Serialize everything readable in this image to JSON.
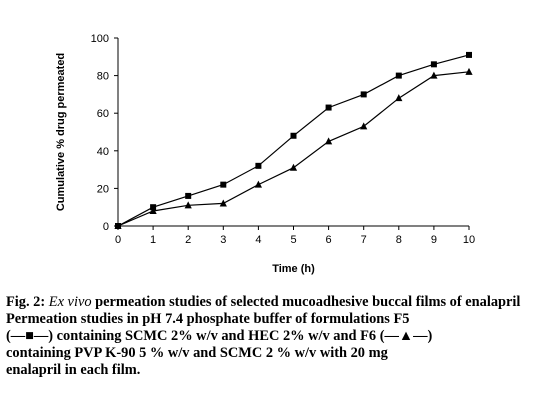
{
  "chart_data": {
    "type": "line",
    "xlabel": "Time (h)",
    "ylabel": "Cumulative % drug permeated",
    "xlim": [
      0,
      10
    ],
    "ylim": [
      0,
      100
    ],
    "x_ticks": [
      0,
      1,
      2,
      3,
      4,
      5,
      6,
      7,
      8,
      9,
      10
    ],
    "y_ticks": [
      0,
      20,
      40,
      60,
      80,
      100
    ],
    "grid": false,
    "legend": "none",
    "x": [
      0,
      1,
      2,
      3,
      4,
      5,
      6,
      7,
      8,
      9,
      10
    ],
    "series": [
      {
        "marker": "square",
        "color": "#000000",
        "values": [
          0,
          10,
          16,
          22,
          32,
          48,
          63,
          70,
          80,
          86,
          91
        ]
      },
      {
        "marker": "triangle",
        "color": "#000000",
        "values": [
          0,
          8,
          11,
          12,
          22,
          31,
          45,
          53,
          68,
          80,
          82
        ]
      }
    ]
  },
  "caption": {
    "fig_label": "Fig. 2:",
    "fig_italic": "Ex vivo",
    "fig_title": "permeation studies of selected mucoadhesive buccal films of enalapril",
    "line1": "Permeation studies in pH 7.4 phosphate buffer of formulations F5",
    "line2a": "(—■—) containing SCMC 2% w/v and HEC 2% w/v and F6 (—▲—)",
    "line3": "containing PVP K-90 5 % w/v and SCMC 2 % w/v with 20 mg",
    "line4": "enalapril in each film."
  }
}
